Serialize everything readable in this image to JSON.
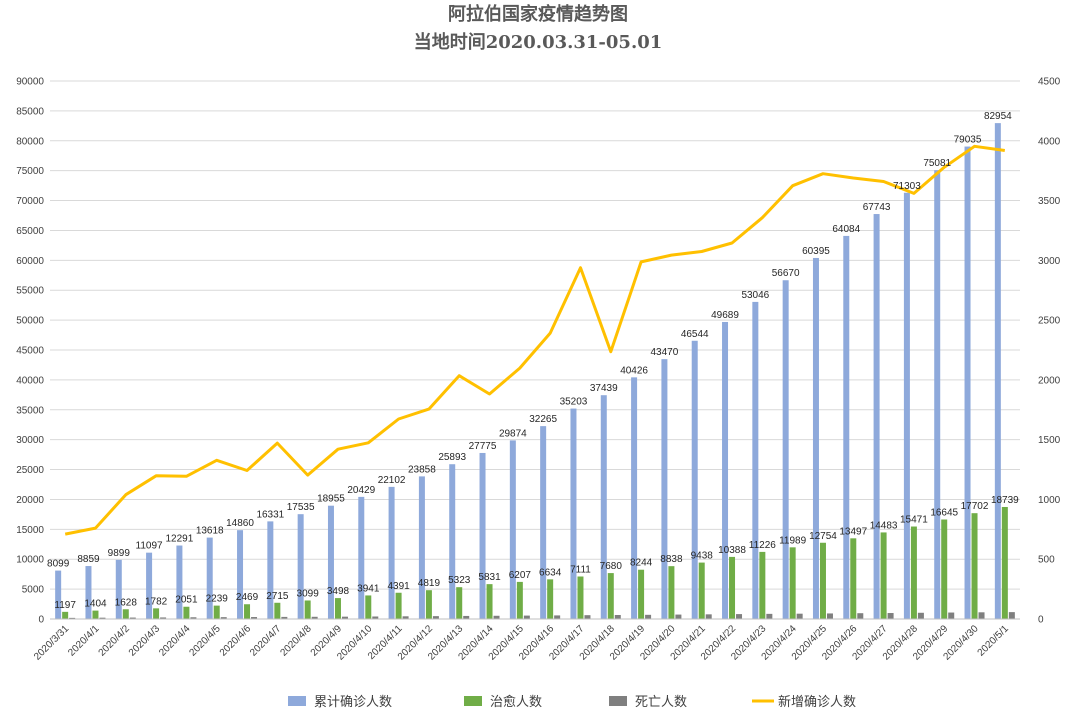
{
  "chart_data": {
    "type": "bar",
    "title": "阿拉伯国家疫情趋势图",
    "subtitle": "当地时间2020.03.31-05.01",
    "categories": [
      "2020/3/31",
      "2020/4/1",
      "2020/4/2",
      "2020/4/3",
      "2020/4/4",
      "2020/4/5",
      "2020/4/6",
      "2020/4/7",
      "2020/4/8",
      "2020/4/9",
      "2020/4/10",
      "2020/4/11",
      "2020/4/12",
      "2020/4/13",
      "2020/4/14",
      "2020/4/15",
      "2020/4/16",
      "2020/4/17",
      "2020/4/18",
      "2020/4/19",
      "2020/4/20",
      "2020/4/21",
      "2020/4/22",
      "2020/4/23",
      "2020/4/24",
      "2020/4/25",
      "2020/4/26",
      "2020/4/27",
      "2020/4/28",
      "2020/4/29",
      "2020/4/30",
      "2020/5/1"
    ],
    "ylim": [
      0,
      90000
    ],
    "yticks": [
      0,
      5000,
      10000,
      15000,
      20000,
      25000,
      30000,
      35000,
      40000,
      45000,
      50000,
      55000,
      60000,
      65000,
      70000,
      75000,
      80000,
      85000,
      90000
    ],
    "y2lim": [
      0,
      4500
    ],
    "y2ticks": [
      0,
      500,
      1000,
      1500,
      2000,
      2500,
      3000,
      3500,
      4000,
      4500
    ],
    "grid": true,
    "legend_position": "bottom",
    "series": [
      {
        "name": "累计确诊人数",
        "type": "bar",
        "axis": "left",
        "color": "#8EA9DB",
        "show_labels": true,
        "values": [
          8099,
          8859,
          9899,
          11097,
          12291,
          13618,
          14860,
          16331,
          17535,
          18955,
          20429,
          22102,
          23858,
          25893,
          27775,
          29874,
          32265,
          35203,
          37439,
          40426,
          43470,
          46544,
          49689,
          53046,
          56670,
          60395,
          64084,
          67743,
          71303,
          75081,
          79035,
          82954
        ]
      },
      {
        "name": "治愈人数",
        "type": "bar",
        "axis": "left",
        "color": "#70AD47",
        "show_labels": true,
        "values": [
          1197,
          1404,
          1628,
          1782,
          2051,
          2239,
          2469,
          2715,
          3099,
          3498,
          3941,
          4391,
          4819,
          5323,
          5831,
          6207,
          6634,
          7111,
          7680,
          8244,
          8838,
          9438,
          10388,
          11226,
          11989,
          12754,
          13497,
          14483,
          15471,
          16645,
          17702,
          18739
        ]
      },
      {
        "name": "死亡人数",
        "type": "bar",
        "axis": "left",
        "color": "#7F7F7F",
        "show_labels": false,
        "values": [
          190,
          220,
          240,
          260,
          290,
          310,
          330,
          350,
          370,
          390,
          420,
          450,
          480,
          510,
          540,
          570,
          600,
          640,
          670,
          700,
          740,
          780,
          820,
          860,
          890,
          930,
          970,
          1000,
          1040,
          1080,
          1120,
          1150
        ]
      },
      {
        "name": "新增确诊人数",
        "type": "line",
        "axis": "right",
        "color": "#FFC000",
        "show_labels": false,
        "values": [
          710,
          760,
          1040,
          1198,
          1194,
          1327,
          1242,
          1471,
          1204,
          1420,
          1474,
          1673,
          1756,
          2035,
          1882,
          2099,
          2391,
          2938,
          2236,
          2987,
          3044,
          3074,
          3145,
          3357,
          3624,
          3725,
          3689,
          3659,
          3560,
          3778,
          3954,
          3919
        ]
      }
    ]
  }
}
